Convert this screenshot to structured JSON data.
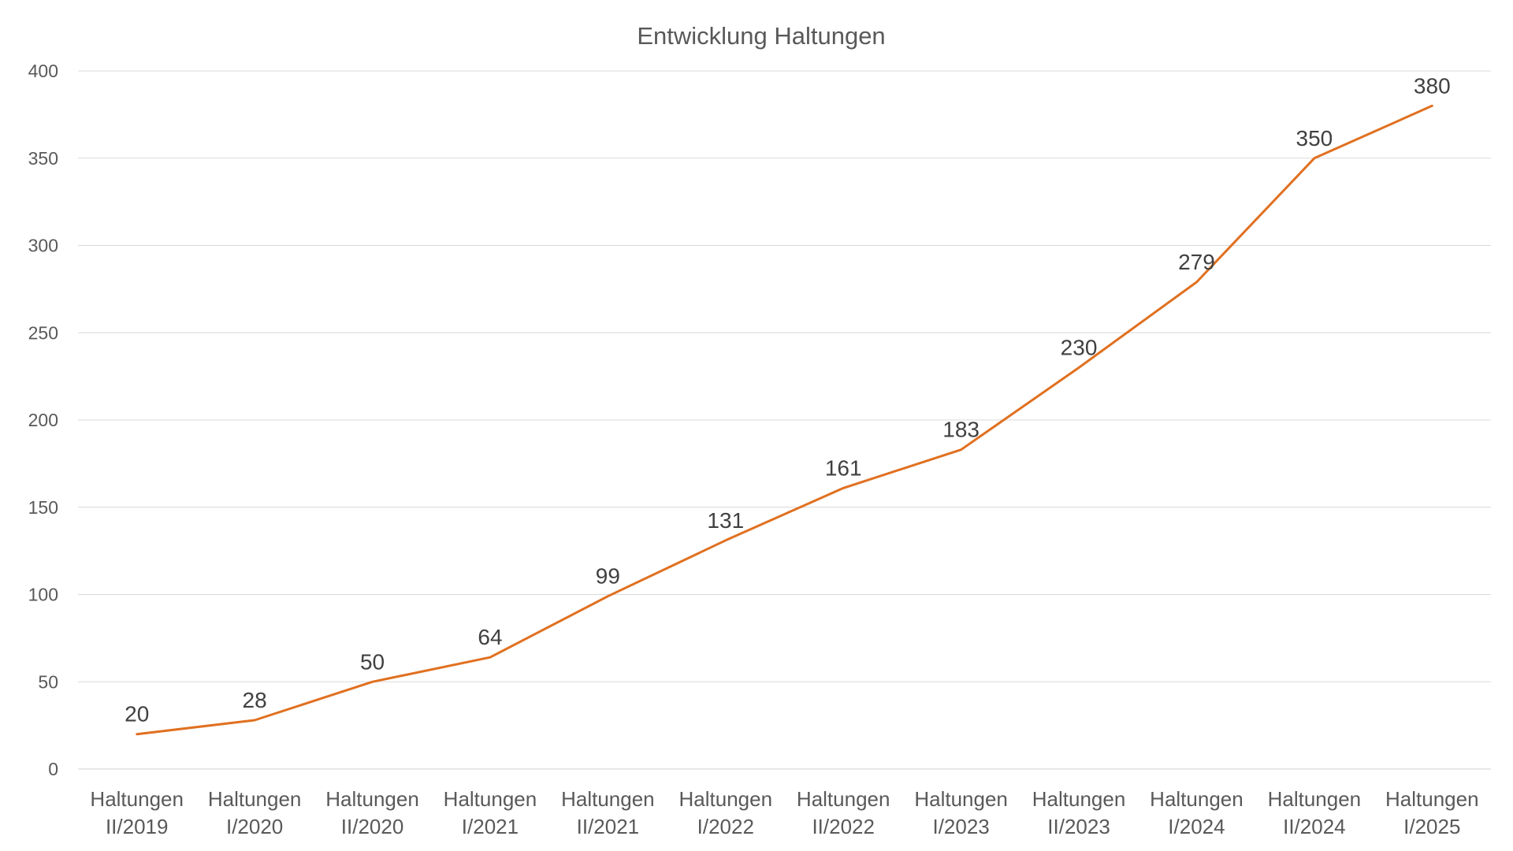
{
  "chart_data": {
    "type": "line",
    "title": "Entwicklung Haltungen",
    "xlabel": "",
    "ylabel": "",
    "categories": [
      [
        "Haltungen",
        "II/2019"
      ],
      [
        "Haltungen",
        "I/2020"
      ],
      [
        "Haltungen",
        "II/2020"
      ],
      [
        "Haltungen",
        "I/2021"
      ],
      [
        "Haltungen",
        "II/2021"
      ],
      [
        "Haltungen",
        "I/2022"
      ],
      [
        "Haltungen",
        "II/2022"
      ],
      [
        "Haltungen",
        "I/2023"
      ],
      [
        "Haltungen",
        "II/2023"
      ],
      [
        "Haltungen",
        "I/2024"
      ],
      [
        "Haltungen",
        "II/2024"
      ],
      [
        "Haltungen",
        "I/2025"
      ]
    ],
    "series": [
      {
        "values": [
          20,
          28,
          50,
          64,
          99,
          131,
          161,
          183,
          230,
          279,
          350,
          380
        ],
        "color": "#e07020"
      }
    ],
    "ylim": [
      0,
      400
    ],
    "yticks": [
      0,
      50,
      100,
      150,
      200,
      250,
      300,
      350,
      400
    ],
    "grid": true,
    "legend": "none",
    "data_labels": true
  }
}
